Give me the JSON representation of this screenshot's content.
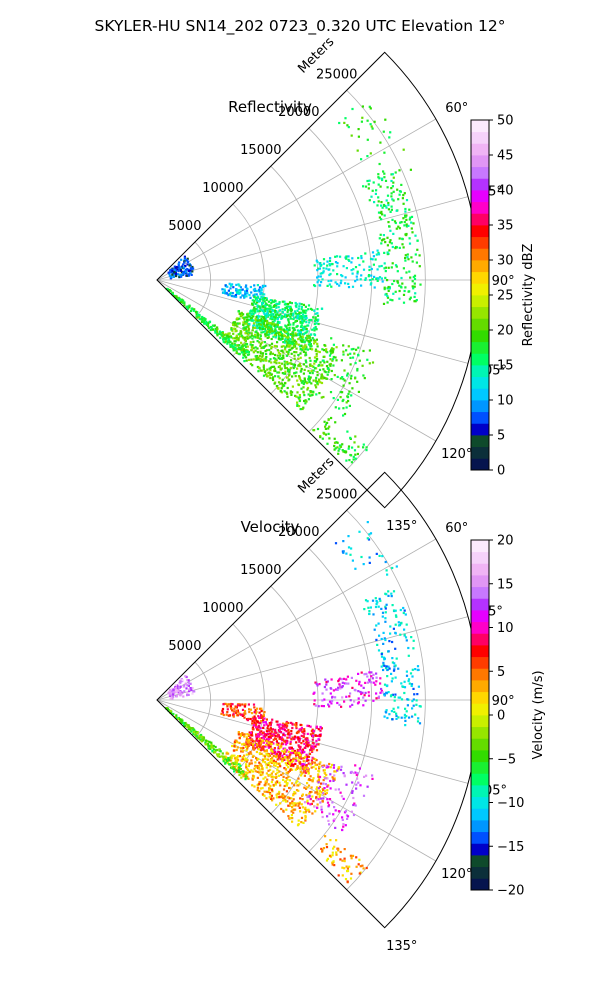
{
  "page_title": "SKYLER-HU  SN14_202  0723_0.320 UTC Elevation 12°",
  "chart_data": [
    {
      "type": "scatter",
      "subtype": "polar-sector-radar",
      "title": "Reflectivity",
      "radial_label": "Meters",
      "radial_ticks": [
        "5000",
        "10000",
        "15000",
        "20000",
        "25000"
      ],
      "rlim": [
        0,
        30000
      ],
      "angle_ticks": [
        "60°",
        "75°",
        "90°",
        "105°",
        "120°",
        "135°"
      ],
      "theta_range_deg": [
        45,
        135
      ],
      "grid": true,
      "colorbar": {
        "label": "Reflectivity dBZ",
        "range": [
          0,
          50
        ],
        "ticks": [
          "0",
          "5",
          "10",
          "15",
          "20",
          "25",
          "30",
          "35",
          "40",
          "45",
          "50"
        ],
        "colors": [
          "#06144e",
          "#0b2f3a",
          "#0e4a2b",
          "#0000c8",
          "#0050ff",
          "#0096ff",
          "#00c8ff",
          "#00e6e6",
          "#00f5b4",
          "#00ff64",
          "#19f032",
          "#32dc00",
          "#64dc00",
          "#96e600",
          "#c8f000",
          "#f0f000",
          "#ffd700",
          "#ffaa00",
          "#ff7800",
          "#ff3c00",
          "#ff0000",
          "#ff0064",
          "#ff00c8",
          "#e600ff",
          "#b432ff",
          "#c878ff",
          "#e196f5",
          "#f0b4f5",
          "#f5d2fa",
          "#fbeafd"
        ]
      },
      "clusters": [
        {
          "theta": [
            47,
            80
          ],
          "r": [
            1200,
            3500
          ],
          "value": 7,
          "density": 120
        },
        {
          "theta": [
            48,
            70
          ],
          "r": [
            22000,
            26000
          ],
          "value": 18,
          "density": 40
        },
        {
          "theta": [
            64,
            96
          ],
          "r": [
            21000,
            24500
          ],
          "value": 17,
          "density": 220
        },
        {
          "theta": [
            82,
            92
          ],
          "r": [
            14500,
            21000
          ],
          "value": 13,
          "density": 130
        },
        {
          "theta": [
            92,
            102
          ],
          "r": [
            6000,
            10000
          ],
          "value": 11,
          "density": 110
        },
        {
          "theta": [
            99,
            116
          ],
          "r": [
            9000,
            15500
          ],
          "value": 16,
          "density": 550
        },
        {
          "theta": [
            110,
            132
          ],
          "r": [
            8000,
            18000
          ],
          "value": 20,
          "density": 700
        },
        {
          "theta": [
            128,
            133
          ],
          "r": [
            1000,
            11000
          ],
          "value": 18,
          "density": 180
        },
        {
          "theta": [
            108,
            126
          ],
          "r": [
            16500,
            21500
          ],
          "value": 18,
          "density": 110
        },
        {
          "theta": [
            128,
            134
          ],
          "r": [
            20000,
            25000
          ],
          "value": 18,
          "density": 70
        }
      ]
    },
    {
      "type": "scatter",
      "subtype": "polar-sector-radar",
      "title": "Velocity",
      "radial_label": "Meters",
      "radial_ticks": [
        "5000",
        "10000",
        "15000",
        "20000",
        "25000"
      ],
      "rlim": [
        0,
        30000
      ],
      "angle_ticks": [
        "60°",
        "75°",
        "90°",
        "105°",
        "120°",
        "135°"
      ],
      "theta_range_deg": [
        45,
        135
      ],
      "grid": true,
      "colorbar": {
        "label": "Velocity (m/s)",
        "range": [
          -20,
          20
        ],
        "ticks": [
          "−20",
          "−15",
          "−10",
          "−5",
          "0",
          "5",
          "10",
          "15",
          "20"
        ],
        "colors": [
          "#06144e",
          "#0b2f3a",
          "#0e4a2b",
          "#0000c8",
          "#0050ff",
          "#0096ff",
          "#00c8ff",
          "#00e6e6",
          "#00f5b4",
          "#00ff64",
          "#19f032",
          "#32dc00",
          "#64dc00",
          "#96e600",
          "#c8f000",
          "#f0f000",
          "#ffd700",
          "#ffaa00",
          "#ff7800",
          "#ff3c00",
          "#ff0000",
          "#ff0064",
          "#ff00c8",
          "#e600ff",
          "#b432ff",
          "#c878ff",
          "#e196f5",
          "#f0b4f5",
          "#f5d2fa",
          "#fbeafd"
        ]
      },
      "clusters": [
        {
          "theta": [
            47,
            80
          ],
          "r": [
            1200,
            3500
          ],
          "value": 15,
          "density": 110
        },
        {
          "theta": [
            48,
            62
          ],
          "r": [
            22000,
            26000
          ],
          "value": -11,
          "density": 30
        },
        {
          "theta": [
            64,
            96
          ],
          "r": [
            21000,
            24500
          ],
          "value": -11,
          "density": 200
        },
        {
          "theta": [
            82,
            92
          ],
          "r": [
            14500,
            21000
          ],
          "value": 12,
          "density": 120
        },
        {
          "theta": [
            92,
            102
          ],
          "r": [
            6000,
            10000
          ],
          "value": 6,
          "density": 100
        },
        {
          "theta": [
            99,
            116
          ],
          "r": [
            9000,
            15500
          ],
          "value": 8,
          "density": 500
        },
        {
          "theta": [
            110,
            132
          ],
          "r": [
            8000,
            18000
          ],
          "value": 3,
          "density": 650
        },
        {
          "theta": [
            128,
            133
          ],
          "r": [
            1000,
            11000
          ],
          "value": -4,
          "density": 180
        },
        {
          "theta": [
            108,
            126
          ],
          "r": [
            16500,
            21500
          ],
          "value": 13,
          "density": 110
        },
        {
          "theta": [
            128,
            134
          ],
          "r": [
            20000,
            25000
          ],
          "value": 3,
          "density": 60
        }
      ]
    }
  ]
}
